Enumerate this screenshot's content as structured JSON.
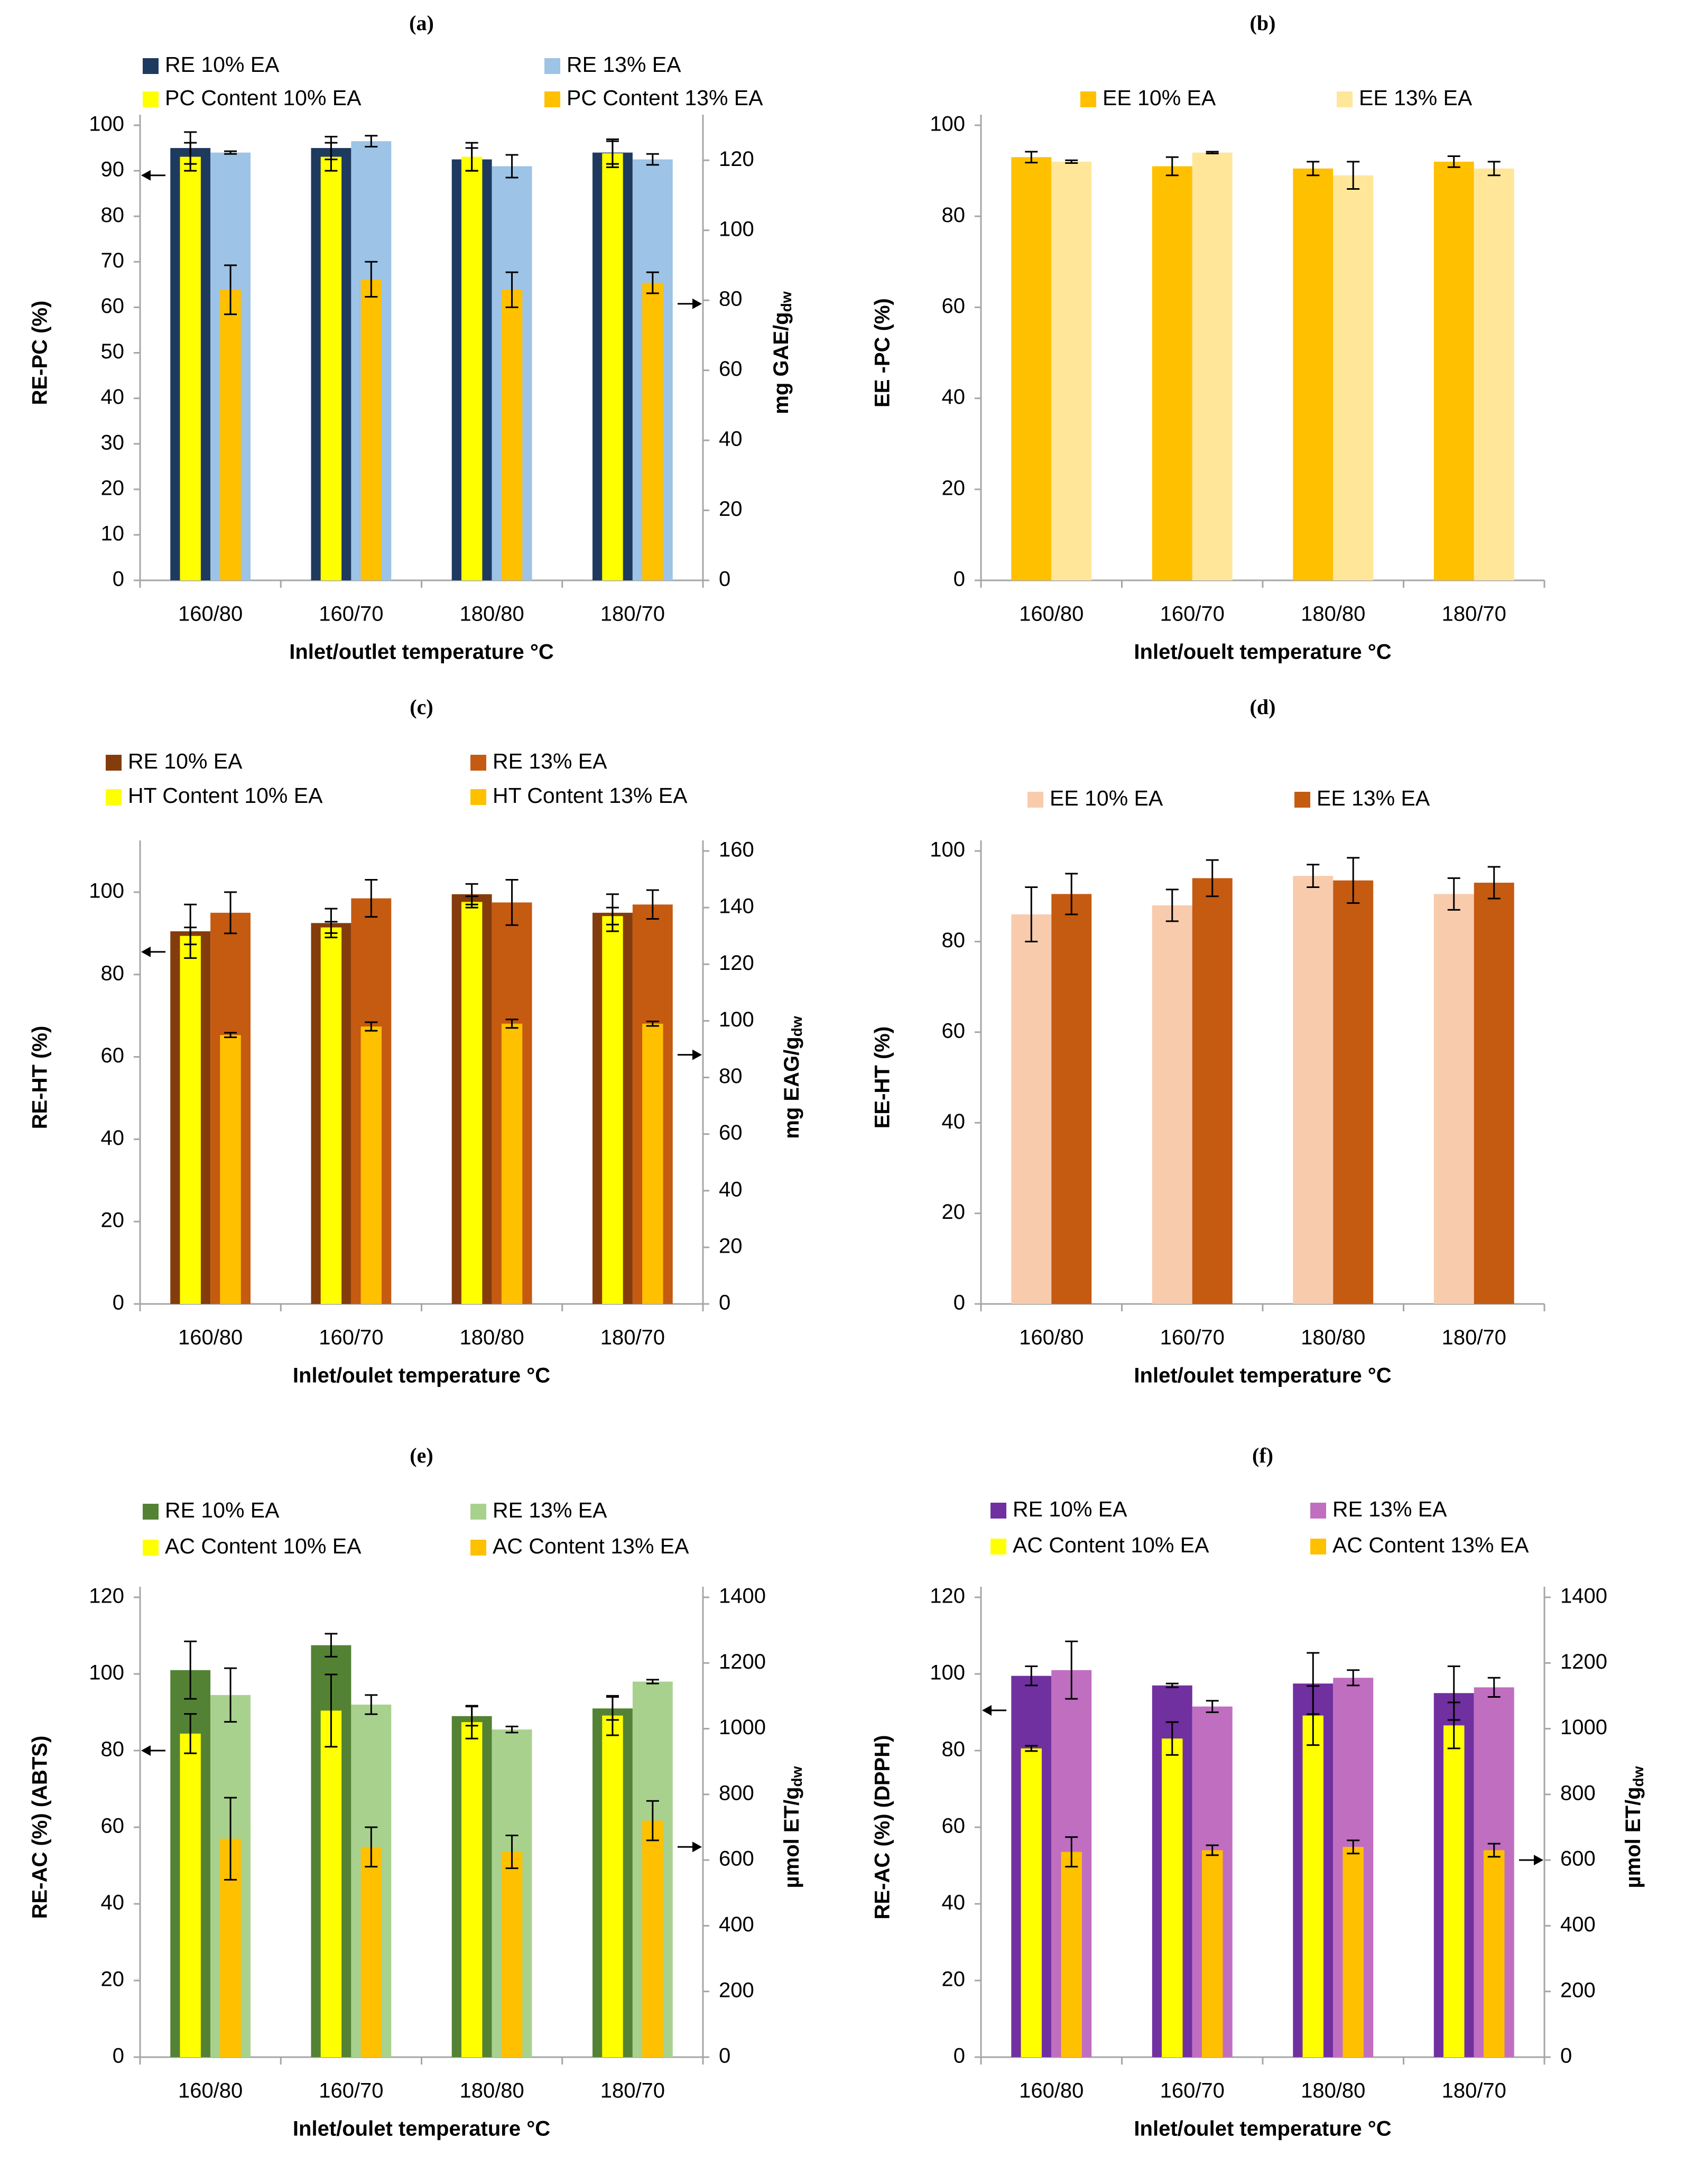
{
  "colors": {
    "axis": "#a6a6a6",
    "text": "#000000",
    "error": "#000000",
    "bg": "#ffffff"
  },
  "chart_data": [
    {
      "id": "a",
      "panel_label": "(a)",
      "type": "bar",
      "categories": [
        "160/80",
        "160/70",
        "180/80",
        "180/70"
      ],
      "xlabel": "Inlet/outlet temperature °C",
      "ylabel": "RE-PC (%)",
      "ylim": [
        0,
        100
      ],
      "yticks": [
        0,
        10,
        20,
        30,
        40,
        50,
        60,
        70,
        80,
        90,
        100
      ],
      "y2label": "mg GAE/g",
      "y2label_sub": "dw",
      "y2lim": [
        0,
        130
      ],
      "y2ticks": [
        0,
        20,
        40,
        60,
        80,
        100,
        120
      ],
      "left_arrow_value": 89,
      "right_arrow_value": 79,
      "series": [
        {
          "name": "RE 10% EA",
          "axis": "left",
          "color": "#1f3a5f",
          "values": [
            95,
            95,
            92.5,
            94
          ],
          "errors": [
            3.5,
            2.5,
            2.5,
            2.5
          ]
        },
        {
          "name": "RE 13% EA",
          "axis": "left",
          "color": "#9dc3e6",
          "values": [
            94,
            96.5,
            91,
            92.5
          ],
          "errors": [
            0.3,
            1.2,
            2.5,
            1.2
          ]
        },
        {
          "name": "PC Content 10% EA",
          "axis": "right",
          "color": "#ffff00",
          "values": [
            121,
            121,
            121,
            122
          ],
          "errors": [
            4,
            4,
            4,
            4
          ]
        },
        {
          "name": "PC Content 13% EA",
          "axis": "right",
          "color": "#ffc000",
          "values": [
            83,
            86,
            83,
            85
          ],
          "errors": [
            7,
            5,
            5,
            3
          ]
        }
      ]
    },
    {
      "id": "b",
      "panel_label": "(b)",
      "type": "bar",
      "categories": [
        "160/80",
        "160/70",
        "180/80",
        "180/70"
      ],
      "xlabel": "Inlet/ouelt temperature °C",
      "ylabel": "EE -PC (%)",
      "ylim": [
        0,
        100
      ],
      "yticks": [
        0,
        20,
        40,
        60,
        80,
        100
      ],
      "series": [
        {
          "name": "EE 10% EA",
          "axis": "left",
          "color": "#ffc000",
          "values": [
            93,
            91,
            90.5,
            92
          ],
          "errors": [
            1.2,
            2,
            1.5,
            1.2
          ]
        },
        {
          "name": "EE 13% EA",
          "axis": "left",
          "color": "#ffe699",
          "values": [
            92,
            94,
            89,
            90.5
          ],
          "errors": [
            0.3,
            0.2,
            3,
            1.5
          ]
        }
      ]
    },
    {
      "id": "c",
      "panel_label": "(c)",
      "type": "bar",
      "categories": [
        "160/80",
        "160/70",
        "180/80",
        "180/70"
      ],
      "xlabel": "Inlet/oulet temperature °C",
      "ylabel": "RE-HT (%)",
      "ylim": [
        0,
        110
      ],
      "yticks": [
        0,
        20,
        40,
        60,
        80,
        100
      ],
      "y2label": "mg EAG/g",
      "y2label_sub": "dw",
      "y2lim": [
        0,
        160
      ],
      "y2ticks": [
        0,
        20,
        40,
        60,
        80,
        100,
        120,
        140,
        160
      ],
      "left_arrow_value": 85.5,
      "right_arrow_value": 88,
      "series": [
        {
          "name": "RE 10% EA",
          "axis": "left",
          "color": "#843c0c",
          "values": [
            90.5,
            92.5,
            99.5,
            95
          ],
          "errors": [
            6.5,
            3.5,
            2.5,
            4.5
          ]
        },
        {
          "name": "RE 13% EA",
          "axis": "left",
          "color": "#c55a11",
          "values": [
            95,
            98.5,
            97.5,
            97
          ],
          "errors": [
            5,
            4.5,
            5.5,
            3.5
          ]
        },
        {
          "name": "HT Content 10% EA",
          "axis": "right",
          "color": "#ffff00",
          "values": [
            130,
            133,
            142,
            137
          ],
          "errors": [
            3,
            2,
            2,
            3
          ]
        },
        {
          "name": "HT Content 13% EA",
          "axis": "right",
          "color": "#ffc000",
          "values": [
            95,
            98,
            99,
            99
          ],
          "errors": [
            0.8,
            1.5,
            1.5,
            0.8
          ]
        }
      ]
    },
    {
      "id": "d",
      "panel_label": "(d)",
      "type": "bar",
      "categories": [
        "160/80",
        "160/70",
        "180/80",
        "180/70"
      ],
      "xlabel": "Inlet/oulet temperature °C",
      "ylabel": "EE-HT (%)",
      "ylim": [
        0,
        100
      ],
      "yticks": [
        0,
        20,
        40,
        60,
        80,
        100
      ],
      "series": [
        {
          "name": "EE 10% EA",
          "axis": "left",
          "color": "#f8cbad",
          "values": [
            86,
            88,
            94.5,
            90.5
          ],
          "errors": [
            6,
            3.5,
            2.5,
            3.5
          ]
        },
        {
          "name": "EE 13% EA",
          "axis": "left",
          "color": "#c55a11",
          "values": [
            90.5,
            94,
            93.5,
            93
          ],
          "errors": [
            4.5,
            4,
            5,
            3.5
          ]
        }
      ]
    },
    {
      "id": "e",
      "panel_label": "(e)",
      "type": "bar",
      "categories": [
        "160/80",
        "160/70",
        "180/80",
        "180/70"
      ],
      "xlabel": "Inlet/oulet temperature °C",
      "ylabel": "RE-AC (%) (ABTS)",
      "ylim": [
        0,
        120
      ],
      "yticks": [
        0,
        20,
        40,
        60,
        80,
        100,
        120
      ],
      "y2label": "µmol ET/g",
      "y2label_sub": "dw",
      "y2lim": [
        0,
        1400
      ],
      "y2ticks": [
        0,
        200,
        400,
        600,
        800,
        1000,
        1200,
        1400
      ],
      "left_arrow_value": 80,
      "right_arrow_value": 640,
      "series": [
        {
          "name": "RE 10% EA",
          "axis": "left",
          "color": "#548235",
          "values": [
            101,
            107.5,
            89,
            91
          ],
          "errors": [
            7.5,
            3,
            2.5,
            3
          ]
        },
        {
          "name": "RE 13% EA",
          "axis": "left",
          "color": "#a9d18e",
          "values": [
            94.5,
            92,
            85.5,
            98
          ],
          "errors": [
            7,
            2.5,
            0.8,
            0.5
          ]
        },
        {
          "name": "AC Content 10% EA",
          "axis": "right",
          "color": "#ffff00",
          "values": [
            985,
            1055,
            1020,
            1040
          ],
          "errors": [
            60,
            110,
            50,
            60
          ]
        },
        {
          "name": "AC Content 13% EA",
          "axis": "right",
          "color": "#ffc000",
          "values": [
            665,
            640,
            625,
            720
          ],
          "errors": [
            125,
            60,
            50,
            60
          ]
        }
      ]
    },
    {
      "id": "f",
      "panel_label": "(f)",
      "type": "bar",
      "categories": [
        "160/80",
        "160/70",
        "180/80",
        "180/70"
      ],
      "xlabel": "Inlet/oulet temperature °C",
      "ylabel": "RE-AC (%) (DPPH)",
      "ylim": [
        0,
        120
      ],
      "yticks": [
        0,
        20,
        40,
        60,
        80,
        100,
        120
      ],
      "y2label": "µmol ET/g",
      "y2label_sub": "dw",
      "y2lim": [
        0,
        1400
      ],
      "y2ticks": [
        0,
        200,
        400,
        600,
        800,
        1000,
        1200,
        1400
      ],
      "left_arrow_value": 90.5,
      "right_arrow_value": 600,
      "series": [
        {
          "name": "RE 10% EA",
          "axis": "left",
          "color": "#7030a0",
          "values": [
            99.5,
            97,
            97.5,
            95
          ],
          "errors": [
            2.5,
            0.5,
            8,
            7
          ]
        },
        {
          "name": "RE 13% EA",
          "axis": "left",
          "color": "#c06ec0",
          "values": [
            101,
            91.5,
            99,
            96.5
          ],
          "errors": [
            7.5,
            1.5,
            2,
            2.5
          ]
        },
        {
          "name": "AC Content 10% EA",
          "axis": "right",
          "color": "#ffff00",
          "values": [
            940,
            970,
            1040,
            1010
          ],
          "errors": [
            8,
            50,
            90,
            70
          ]
        },
        {
          "name": "AC Content 13% EA",
          "axis": "right",
          "color": "#ffc000",
          "values": [
            625,
            630,
            640,
            630
          ],
          "errors": [
            45,
            15,
            20,
            20
          ]
        }
      ]
    }
  ]
}
